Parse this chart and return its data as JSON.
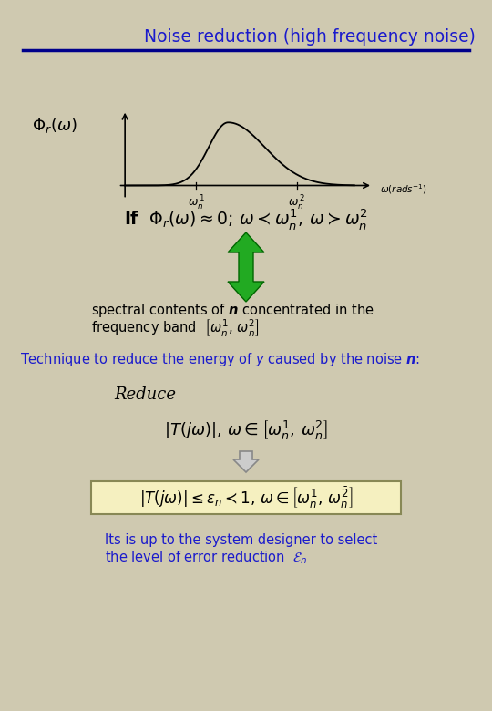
{
  "title": "Noise reduction (high frequency noise)",
  "title_color": "#1a1acc",
  "title_fontsize": 13.5,
  "bg_color": "#cfc9b0",
  "header_line_color": "#00008b",
  "fig_width": 5.4,
  "fig_height": 7.8,
  "dpi": 100,
  "green_arrow_color": "#22aa22",
  "grey_arrow_color": "#999999",
  "box_fill": "#f5f0c0",
  "box_edge": "#888855"
}
